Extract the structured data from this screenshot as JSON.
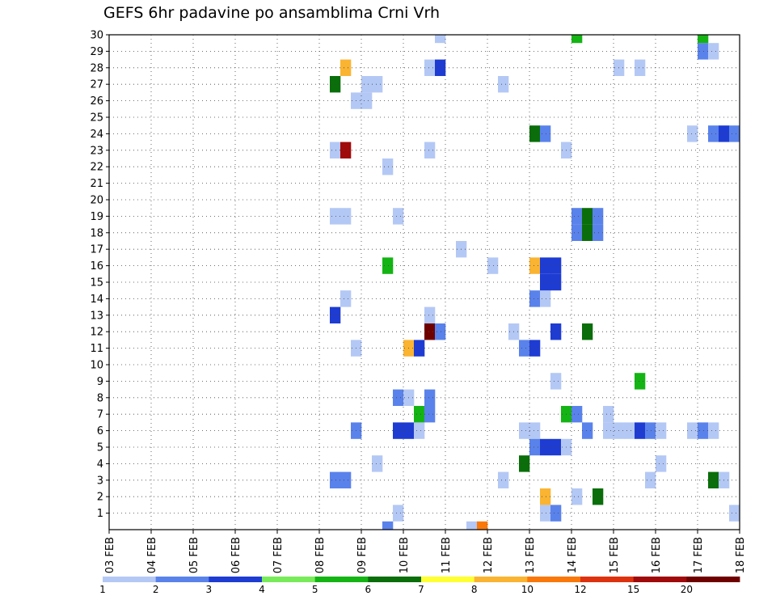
{
  "chart_data": {
    "type": "heatmap",
    "title": "GEFS 6hr padavine po ansamblima Crni Vrh",
    "xlabel": "",
    "ylabel": "",
    "x_tick_labels": [
      "03 FEB",
      "04 FEB",
      "05 FEB",
      "06 FEB",
      "07 FEB",
      "08 FEB",
      "09 FEB",
      "10 FEB",
      "11 FEB",
      "12 FEB",
      "13 FEB",
      "14 FEB",
      "15 FEB",
      "16 FEB",
      "17 FEB",
      "18 FEB"
    ],
    "y_tick_labels": [
      "1",
      "2",
      "3",
      "4",
      "5",
      "6",
      "7",
      "8",
      "9",
      "10",
      "11",
      "12",
      "13",
      "14",
      "15",
      "16",
      "17",
      "18",
      "19",
      "20",
      "21",
      "22",
      "23",
      "24",
      "25",
      "26",
      "27",
      "28",
      "29",
      "30"
    ],
    "xlim": [
      "03 FEB",
      "18 FEB"
    ],
    "ylim": [
      0,
      30
    ],
    "grid": true,
    "time_step_hours": 6,
    "legend": {
      "placement": "bottom",
      "colors": [
        "#b4c8f5",
        "#5a82eb",
        "#1e3cd2",
        "#78eb5a",
        "#14b414",
        "#0a6e0a",
        "#ffff32",
        "#fab432",
        "#fa780a",
        "#dc320f",
        "#a00a0a",
        "#6e0000"
      ],
      "labels": [
        "1",
        "2",
        "3",
        "4",
        "5",
        "6",
        "7",
        "8",
        "10",
        "12",
        "15",
        "20"
      ]
    },
    "cells": [
      {
        "x": "08 FEB 06z",
        "y": 3,
        "v": 2
      },
      {
        "x": "08 FEB 12z",
        "y": 3,
        "v": 2
      },
      {
        "x": "08 FEB 06z",
        "y": 13,
        "v": 3
      },
      {
        "x": "08 FEB 06z",
        "y": 19,
        "v": 1
      },
      {
        "x": "08 FEB 12z",
        "y": 19,
        "v": 1
      },
      {
        "x": "08 FEB 06z",
        "y": 23,
        "v": 1
      },
      {
        "x": "08 FEB 12z",
        "y": 23,
        "v": 15
      },
      {
        "x": "08 FEB 06z",
        "y": 27,
        "v": 6
      },
      {
        "x": "08 FEB 12z",
        "y": 28,
        "v": 8
      },
      {
        "x": "08 FEB 12z",
        "y": 14,
        "v": 1
      },
      {
        "x": "08 FEB 18z",
        "y": 11,
        "v": 1
      },
      {
        "x": "08 FEB 18z",
        "y": 6,
        "v": 2
      },
      {
        "x": "08 FEB 18z",
        "y": 26,
        "v": 1
      },
      {
        "x": "09 FEB 00z",
        "y": 26,
        "v": 1
      },
      {
        "x": "09 FEB 00z",
        "y": 27,
        "v": 1
      },
      {
        "x": "09 FEB 06z",
        "y": 27,
        "v": 1
      },
      {
        "x": "09 FEB 06z",
        "y": 4,
        "v": 1
      },
      {
        "x": "09 FEB 12z",
        "y": 0,
        "v": 2
      },
      {
        "x": "09 FEB 12z",
        "y": 16,
        "v": 5
      },
      {
        "x": "09 FEB 12z",
        "y": 22,
        "v": 1
      },
      {
        "x": "09 FEB 18z",
        "y": 1,
        "v": 1
      },
      {
        "x": "09 FEB 18z",
        "y": 19,
        "v": 1
      },
      {
        "x": "09 FEB 18z",
        "y": 6,
        "v": 3
      },
      {
        "x": "10 FEB 00z",
        "y": 6,
        "v": 3
      },
      {
        "x": "09 FEB 18z",
        "y": 8,
        "v": 2
      },
      {
        "x": "10 FEB 00z",
        "y": 8,
        "v": 1
      },
      {
        "x": "10 FEB 00z",
        "y": 11,
        "v": 8
      },
      {
        "x": "10 FEB 06z",
        "y": 11,
        "v": 3
      },
      {
        "x": "10 FEB 06z",
        "y": 6,
        "v": 1
      },
      {
        "x": "10 FEB 06z",
        "y": 7,
        "v": 5
      },
      {
        "x": "10 FEB 12z",
        "y": 7,
        "v": 2
      },
      {
        "x": "10 FEB 12z",
        "y": 8,
        "v": 2
      },
      {
        "x": "10 FEB 12z",
        "y": 12,
        "v": 20
      },
      {
        "x": "10 FEB 12z",
        "y": 13,
        "v": 1
      },
      {
        "x": "10 FEB 12z",
        "y": 23,
        "v": 1
      },
      {
        "x": "10 FEB 12z",
        "y": 28,
        "v": 1
      },
      {
        "x": "10 FEB 18z",
        "y": 12,
        "v": 2
      },
      {
        "x": "10 FEB 18z",
        "y": 28,
        "v": 3
      },
      {
        "x": "10 FEB 18z",
        "y": 30,
        "v": 1
      },
      {
        "x": "11 FEB 06z",
        "y": 17,
        "v": 1
      },
      {
        "x": "11 FEB 12z",
        "y": 0,
        "v": 1
      },
      {
        "x": "11 FEB 18z",
        "y": 0,
        "v": 10
      },
      {
        "x": "12 FEB 00z",
        "y": 16,
        "v": 1
      },
      {
        "x": "12 FEB 06z",
        "y": 3,
        "v": 1
      },
      {
        "x": "12 FEB 06z",
        "y": 27,
        "v": 1
      },
      {
        "x": "12 FEB 12z",
        "y": 12,
        "v": 1
      },
      {
        "x": "12 FEB 18z",
        "y": 6,
        "v": 1
      },
      {
        "x": "13 FEB 00z",
        "y": 6,
        "v": 1
      },
      {
        "x": "12 FEB 18z",
        "y": 4,
        "v": 6
      },
      {
        "x": "12 FEB 18z",
        "y": 11,
        "v": 2
      },
      {
        "x": "13 FEB 00z",
        "y": 11,
        "v": 3
      },
      {
        "x": "13 FEB 00z",
        "y": 5,
        "v": 2
      },
      {
        "x": "13 FEB 00z",
        "y": 14,
        "v": 2
      },
      {
        "x": "13 FEB 00z",
        "y": 16,
        "v": 8
      },
      {
        "x": "13 FEB 00z",
        "y": 24,
        "v": 6
      },
      {
        "x": "13 FEB 06z",
        "y": 24,
        "v": 2
      },
      {
        "x": "13 FEB 06z",
        "y": 1,
        "v": 1
      },
      {
        "x": "13 FEB 06z",
        "y": 2,
        "v": 8
      },
      {
        "x": "13 FEB 06z",
        "y": 5,
        "v": 3
      },
      {
        "x": "13 FEB 12z",
        "y": 5,
        "v": 3
      },
      {
        "x": "13 FEB 06z",
        "y": 14,
        "v": 1
      },
      {
        "x": "13 FEB 06z",
        "y": 15,
        "v": 3
      },
      {
        "x": "13 FEB 12z",
        "y": 15,
        "v": 3
      },
      {
        "x": "13 FEB 06z",
        "y": 16,
        "v": 3
      },
      {
        "x": "13 FEB 12z",
        "y": 16,
        "v": 3
      },
      {
        "x": "13 FEB 12z",
        "y": 1,
        "v": 2
      },
      {
        "x": "13 FEB 12z",
        "y": 9,
        "v": 1
      },
      {
        "x": "13 FEB 12z",
        "y": 12,
        "v": 3
      },
      {
        "x": "13 FEB 18z",
        "y": 5,
        "v": 1
      },
      {
        "x": "13 FEB 18z",
        "y": 7,
        "v": 5
      },
      {
        "x": "13 FEB 18z",
        "y": 23,
        "v": 1
      },
      {
        "x": "14 FEB 00z",
        "y": 2,
        "v": 1
      },
      {
        "x": "14 FEB 00z",
        "y": 7,
        "v": 2
      },
      {
        "x": "14 FEB 00z",
        "y": 18,
        "v": 2
      },
      {
        "x": "14 FEB 00z",
        "y": 19,
        "v": 2
      },
      {
        "x": "14 FEB 00z",
        "y": 30,
        "v": 5
      },
      {
        "x": "14 FEB 06z",
        "y": 6,
        "v": 2
      },
      {
        "x": "14 FEB 06z",
        "y": 12,
        "v": 6
      },
      {
        "x": "14 FEB 06z",
        "y": 18,
        "v": 6
      },
      {
        "x": "14 FEB 06z",
        "y": 19,
        "v": 6
      },
      {
        "x": "14 FEB 12z",
        "y": 2,
        "v": 6
      },
      {
        "x": "14 FEB 12z",
        "y": 18,
        "v": 2
      },
      {
        "x": "14 FEB 12z",
        "y": 19,
        "v": 2
      },
      {
        "x": "14 FEB 18z",
        "y": 6,
        "v": 1
      },
      {
        "x": "14 FEB 18z",
        "y": 7,
        "v": 1
      },
      {
        "x": "15 FEB 00z",
        "y": 6,
        "v": 1
      },
      {
        "x": "15 FEB 06z",
        "y": 6,
        "v": 1
      },
      {
        "x": "15 FEB 00z",
        "y": 28,
        "v": 1
      },
      {
        "x": "15 FEB 12z",
        "y": 6,
        "v": 3
      },
      {
        "x": "15 FEB 12z",
        "y": 9,
        "v": 5
      },
      {
        "x": "15 FEB 12z",
        "y": 28,
        "v": 1
      },
      {
        "x": "15 FEB 18z",
        "y": 3,
        "v": 1
      },
      {
        "x": "15 FEB 18z",
        "y": 6,
        "v": 2
      },
      {
        "x": "16 FEB 00z",
        "y": 4,
        "v": 1
      },
      {
        "x": "16 FEB 00z",
        "y": 6,
        "v": 1
      },
      {
        "x": "16 FEB 18z",
        "y": 6,
        "v": 1
      },
      {
        "x": "16 FEB 18z",
        "y": 24,
        "v": 1
      },
      {
        "x": "17 FEB 00z",
        "y": 6,
        "v": 2
      },
      {
        "x": "17 FEB 00z",
        "y": 29,
        "v": 2
      },
      {
        "x": "17 FEB 00z",
        "y": 30,
        "v": 5
      },
      {
        "x": "17 FEB 06z",
        "y": 3,
        "v": 6
      },
      {
        "x": "17 FEB 06z",
        "y": 6,
        "v": 1
      },
      {
        "x": "17 FEB 06z",
        "y": 24,
        "v": 2
      },
      {
        "x": "17 FEB 06z",
        "y": 29,
        "v": 1
      },
      {
        "x": "17 FEB 12z",
        "y": 3,
        "v": 1
      },
      {
        "x": "17 FEB 12z",
        "y": 24,
        "v": 3
      },
      {
        "x": "17 FEB 18z",
        "y": 1,
        "v": 1
      },
      {
        "x": "17 FEB 18z",
        "y": 24,
        "v": 2
      }
    ]
  }
}
